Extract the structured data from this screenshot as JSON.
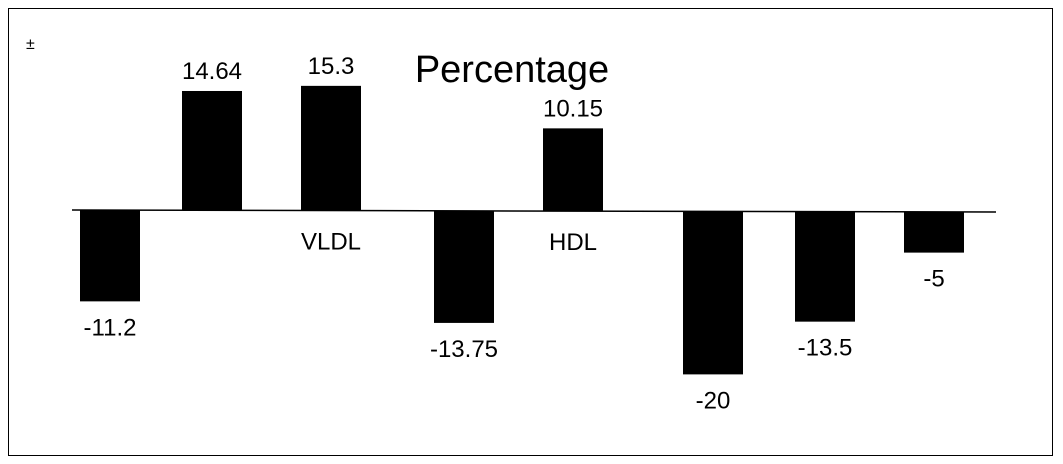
{
  "chart_data": {
    "type": "bar",
    "title": "Percentage",
    "corner_mark": "±",
    "values": [
      -11.2,
      14.64,
      15.3,
      -13.75,
      10.15,
      -20,
      -13.5,
      -5
    ],
    "data_labels": [
      "-11.2",
      "14.64",
      "15.3",
      "-13.75",
      "10.15",
      "-20",
      "-13.5",
      "-5"
    ],
    "category_labels": [
      "",
      "",
      "VLDL",
      "",
      "HDL",
      "",
      "",
      ""
    ],
    "bar_color": "#000000",
    "axis_color": "#000000",
    "grid": false
  }
}
